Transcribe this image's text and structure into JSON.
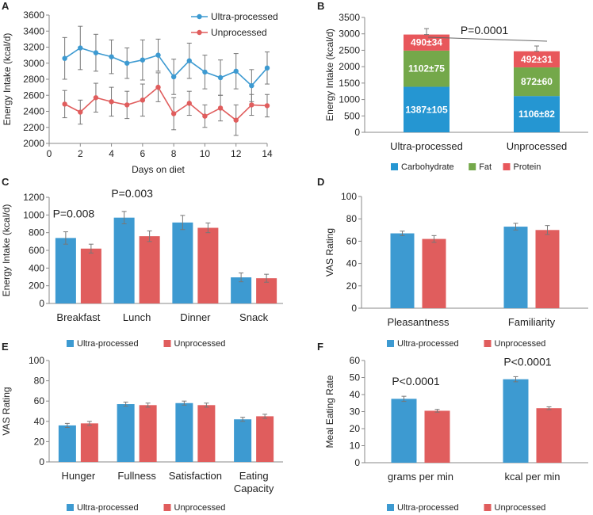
{
  "colors": {
    "ultra": "#3d9ad1",
    "unprocessed": "#e05d5d",
    "carbohydrate": "#2596d2",
    "fat": "#74a84a",
    "protein": "#e8575b",
    "axis": "#888888",
    "text": "#222222"
  },
  "chart_data": [
    {
      "panel": "A",
      "type": "line",
      "xlabel": "Days on diet",
      "ylabel": "Energy Intake (kcal/d)",
      "xlim": [
        0,
        14
      ],
      "ylim": [
        2000,
        3600
      ],
      "xticks": [
        "0",
        "2",
        "4",
        "6",
        "8",
        "10",
        "12",
        "14"
      ],
      "yticks": [
        "2000",
        "2200",
        "2400",
        "2600",
        "2800",
        "3000",
        "3200",
        "3400",
        "3600"
      ],
      "x": [
        1,
        2,
        3,
        4,
        5,
        6,
        7,
        8,
        9,
        10,
        11,
        12,
        13,
        14
      ],
      "series": [
        {
          "name": "Ultra-processed",
          "values": [
            3060,
            3190,
            3130,
            3080,
            3000,
            3040,
            3100,
            2830,
            3030,
            2890,
            2820,
            2900,
            2720,
            2940
          ],
          "errors": [
            260,
            270,
            230,
            210,
            190,
            250,
            200,
            220,
            220,
            210,
            220,
            220,
            200,
            200
          ]
        },
        {
          "name": "Unprocessed",
          "values": [
            2490,
            2390,
            2570,
            2520,
            2480,
            2540,
            2700,
            2370,
            2500,
            2340,
            2440,
            2290,
            2480,
            2470
          ],
          "errors": [
            170,
            150,
            180,
            180,
            170,
            200,
            180,
            200,
            150,
            140,
            160,
            190,
            130,
            140
          ]
        }
      ],
      "legend_position": "top-right"
    },
    {
      "panel": "B",
      "type": "bar",
      "stacked": true,
      "ylabel": "Energy Intake (kcal/d)",
      "ylim": [
        0,
        3500
      ],
      "yticks": [
        "0",
        "500",
        "1000",
        "1500",
        "2000",
        "2500",
        "3000",
        "3500"
      ],
      "categories": [
        "Ultra-processed",
        "Unprocessed"
      ],
      "series": [
        {
          "name": "Carbohydrate",
          "values": [
            1387,
            1106
          ],
          "labels": [
            "1387±105",
            "1106±82"
          ]
        },
        {
          "name": "Fat",
          "values": [
            1102,
            872
          ],
          "labels": [
            "1102±75",
            "872±60"
          ]
        },
        {
          "name": "Protein",
          "values": [
            490,
            492
          ],
          "labels": [
            "490±34",
            "492±31"
          ]
        }
      ],
      "total_errors": [
        180,
        160
      ],
      "annotation": "P=0.0001",
      "legend_position": "bottom"
    },
    {
      "panel": "C",
      "type": "bar",
      "ylabel": "Energy Intake (kcal/d)",
      "ylim": [
        0,
        1200
      ],
      "yticks": [
        "0",
        "200",
        "400",
        "600",
        "800",
        "1000",
        "1200"
      ],
      "categories": [
        "Breakfast",
        "Lunch",
        "Dinner",
        "Snack"
      ],
      "series": [
        {
          "name": "Ultra-processed",
          "values": [
            740,
            970,
            915,
            295
          ],
          "errors": [
            70,
            70,
            80,
            50
          ]
        },
        {
          "name": "Unprocessed",
          "values": [
            620,
            760,
            855,
            285
          ],
          "errors": [
            50,
            60,
            55,
            45
          ]
        }
      ],
      "annotations": [
        {
          "text": "P=0.008",
          "category": "Breakfast"
        },
        {
          "text": "P=0.003",
          "category": "Lunch"
        }
      ],
      "legend_position": "bottom"
    },
    {
      "panel": "D",
      "type": "bar",
      "ylabel": "VAS Rating",
      "ylim": [
        0,
        100
      ],
      "yticks": [
        "0",
        "20",
        "40",
        "60",
        "80",
        "100"
      ],
      "categories": [
        "Pleasantness",
        "Familiarity"
      ],
      "series": [
        {
          "name": "Ultra-processed",
          "values": [
            67,
            73
          ],
          "errors": [
            2,
            3
          ]
        },
        {
          "name": "Unprocessed",
          "values": [
            62,
            70
          ],
          "errors": [
            3,
            4
          ]
        }
      ],
      "legend_position": "bottom"
    },
    {
      "panel": "E",
      "type": "bar",
      "ylabel": "VAS Rating",
      "ylim": [
        0,
        100
      ],
      "yticks": [
        "0",
        "20",
        "40",
        "60",
        "80",
        "100"
      ],
      "categories": [
        "Hunger",
        "Fullness",
        "Satisfaction",
        "Eating Capacity"
      ],
      "category_lines": [
        [
          "Hunger"
        ],
        [
          "Fullness"
        ],
        [
          "Satisfaction"
        ],
        [
          "Eating",
          "Capacity"
        ]
      ],
      "series": [
        {
          "name": "Ultra-processed",
          "values": [
            36,
            57,
            58,
            42
          ],
          "errors": [
            2,
            2,
            2,
            2
          ]
        },
        {
          "name": "Unprocessed",
          "values": [
            38,
            56,
            56,
            45
          ],
          "errors": [
            2,
            2,
            2,
            2
          ]
        }
      ],
      "legend_position": "bottom"
    },
    {
      "panel": "F",
      "type": "bar",
      "ylabel": "Meal Eating Rate",
      "ylim": [
        0,
        60
      ],
      "yticks": [
        "0",
        "10",
        "20",
        "30",
        "40",
        "50",
        "60"
      ],
      "categories": [
        "grams per min",
        "kcal per min"
      ],
      "series": [
        {
          "name": "Ultra-processed",
          "values": [
            37.5,
            49
          ],
          "errors": [
            1.5,
            1.5
          ]
        },
        {
          "name": "Unprocessed",
          "values": [
            30.5,
            32
          ],
          "errors": [
            0.8,
            0.8
          ]
        }
      ],
      "annotations": [
        {
          "text": "P<0.0001",
          "category": "grams per min"
        },
        {
          "text": "P<0.0001",
          "category": "kcal per min"
        }
      ],
      "legend_position": "bottom"
    }
  ]
}
